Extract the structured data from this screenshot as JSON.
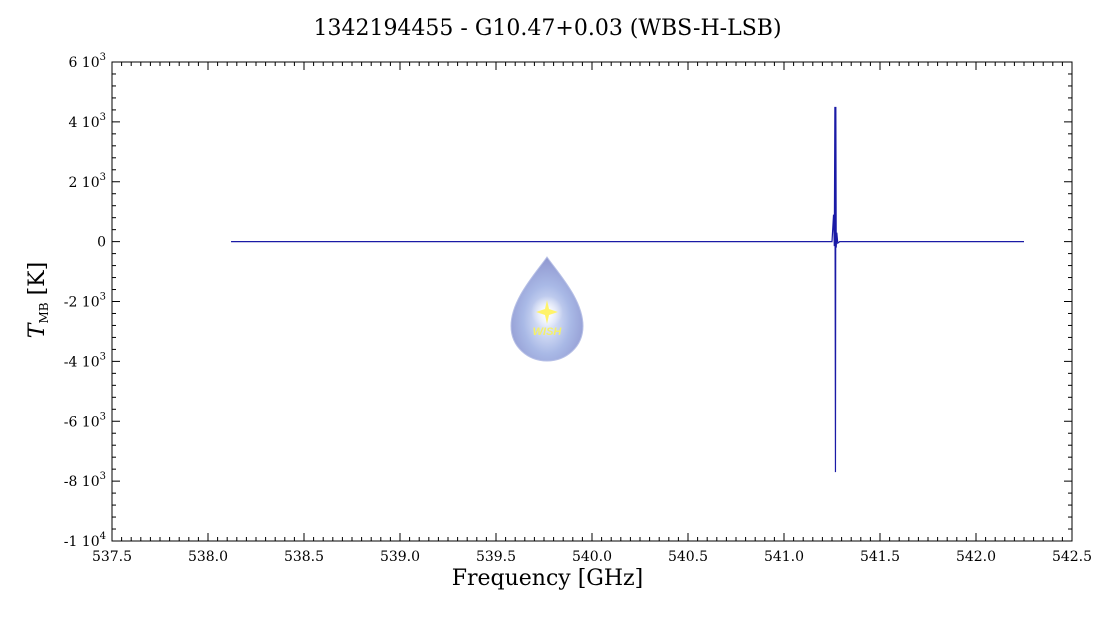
{
  "chart_data": {
    "type": "line",
    "title": "1342194455 - G10.47+0.03 (WBS-H-LSB)",
    "xlabel": "Frequency [GHz]",
    "ylabel": {
      "symbol": "T",
      "subscript": "MB",
      "unit": "[K]"
    },
    "xlim": [
      537.5,
      542.5
    ],
    "ylim": [
      -10000,
      6000
    ],
    "xticks": [
      {
        "value": 537.5,
        "label": "537.5"
      },
      {
        "value": 538.0,
        "label": "538.0"
      },
      {
        "value": 538.5,
        "label": "538.5"
      },
      {
        "value": 539.0,
        "label": "539.0"
      },
      {
        "value": 539.5,
        "label": "539.5"
      },
      {
        "value": 540.0,
        "label": "540.0"
      },
      {
        "value": 540.5,
        "label": "540.5"
      },
      {
        "value": 541.0,
        "label": "541.0"
      },
      {
        "value": 541.5,
        "label": "541.5"
      },
      {
        "value": 542.0,
        "label": "542.0"
      },
      {
        "value": 542.5,
        "label": "542.5"
      }
    ],
    "yticks": [
      {
        "value": 6000,
        "mant": "6 10",
        "exp": "3"
      },
      {
        "value": 4000,
        "mant": "4 10",
        "exp": "3"
      },
      {
        "value": 2000,
        "mant": "2 10",
        "exp": "3"
      },
      {
        "value": 0,
        "mant": "0",
        "exp": ""
      },
      {
        "value": -2000,
        "mant": "-2 10",
        "exp": "3"
      },
      {
        "value": -4000,
        "mant": "-4 10",
        "exp": "3"
      },
      {
        "value": -6000,
        "mant": "-6 10",
        "exp": "3"
      },
      {
        "value": -8000,
        "mant": "-8 10",
        "exp": "3"
      },
      {
        "value": -10000,
        "mant": "-1 10",
        "exp": "4"
      }
    ],
    "series": [
      {
        "color": "#1a1aa6",
        "x": [
          538.12,
          541.25,
          541.258,
          541.262,
          541.265,
          541.268,
          541.27,
          541.272,
          541.275,
          541.28,
          541.29,
          542.25
        ],
        "y": [
          0,
          0,
          900,
          -150,
          4500,
          -7700,
          4500,
          -200,
          300,
          -50,
          0,
          0
        ]
      }
    ],
    "grid": false,
    "logo": {
      "text": "WISH",
      "icon": "water-drop-icon"
    }
  }
}
